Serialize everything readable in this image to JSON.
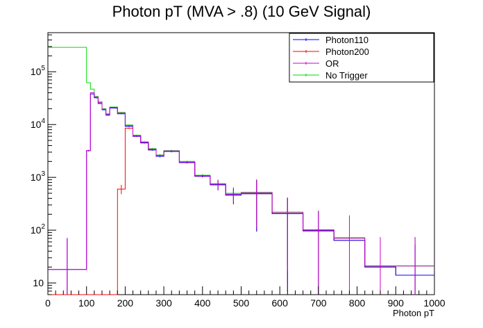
{
  "chart_data": {
    "type": "histogram",
    "title": "Photon pT (MVA > .8) (10 GeV Signal)",
    "xlabel": "Photon pT",
    "ylabel": "",
    "xlim": [
      0,
      1000
    ],
    "ylim": [
      6,
      550000
    ],
    "yscale": "log",
    "grid": false,
    "legend_position": "top-right",
    "x_ticks": [
      0,
      100,
      200,
      300,
      400,
      500,
      600,
      700,
      800,
      900,
      1000
    ],
    "x_tick_labels": [
      "0",
      "100",
      "200",
      "300",
      "400",
      "500",
      "600",
      "700",
      "800",
      "900",
      "1000"
    ],
    "y_ticks": [
      10,
      100,
      1000,
      10000,
      100000
    ],
    "y_tick_labels": [
      {
        "base": "10",
        "exp": ""
      },
      {
        "base": "10",
        "exp": "2"
      },
      {
        "base": "10",
        "exp": "3"
      },
      {
        "base": "10",
        "exp": "4"
      },
      {
        "base": "10",
        "exp": "5"
      }
    ],
    "bin_edges": [
      0,
      100,
      110,
      120,
      130,
      140,
      150,
      160,
      180,
      200,
      220,
      240,
      260,
      280,
      300,
      340,
      380,
      420,
      460,
      500,
      580,
      660,
      740,
      820,
      900,
      1000
    ],
    "series": [
      {
        "name": "Photon110",
        "color": "#0000ff",
        "values": [
          18,
          3200,
          38000,
          32000,
          25000,
          19000,
          15000,
          20500,
          16000,
          9200,
          6000,
          4500,
          3300,
          2500,
          3100,
          1900,
          1050,
          720,
          460,
          490,
          205,
          97,
          64,
          20,
          14
        ],
        "errors": [
          8,
          120,
          400,
          400,
          350,
          300,
          250,
          300,
          250,
          200,
          150,
          120,
          100,
          90,
          110,
          70,
          50,
          50,
          50,
          60,
          30,
          20,
          18,
          8,
          6
        ]
      },
      {
        "name": "Photon200",
        "color": "#ff0000",
        "values": [
          6,
          6,
          6,
          6,
          6,
          6,
          6,
          6,
          600,
          8500,
          6000,
          4500,
          3300,
          2500,
          3100,
          1900,
          1050,
          720,
          460,
          490,
          205,
          97,
          64,
          20,
          14
        ],
        "errors": [
          0,
          0,
          0,
          0,
          0,
          0,
          0,
          0,
          40,
          200,
          150,
          120,
          100,
          90,
          110,
          70,
          50,
          50,
          50,
          60,
          30,
          20,
          18,
          8,
          6
        ]
      },
      {
        "name": "OR",
        "color": "#cc00cc",
        "values": [
          18,
          3200,
          40000,
          33000,
          26000,
          19500,
          15500,
          21000,
          16500,
          9600,
          6100,
          4600,
          3400,
          2600,
          3150,
          1950,
          1070,
          740,
          480,
          510,
          215,
          100,
          70,
          21,
          21
        ],
        "errors": [
          8,
          120,
          400,
          400,
          350,
          300,
          250,
          300,
          250,
          200,
          150,
          120,
          100,
          90,
          110,
          70,
          50,
          50,
          50,
          60,
          30,
          20,
          18,
          8,
          8
        ]
      },
      {
        "name": "No Trigger",
        "color": "#00dd00",
        "values": [
          290000,
          62000,
          47000,
          34000,
          27000,
          20000,
          16000,
          21500,
          17000,
          9800,
          6300,
          4700,
          3500,
          2650,
          3200,
          2000,
          1100,
          760,
          500,
          520,
          220,
          102,
          72,
          21,
          21
        ],
        "errors": [
          1000,
          500,
          400,
          400,
          350,
          300,
          250,
          300,
          250,
          200,
          150,
          120,
          100,
          90,
          110,
          70,
          50,
          50,
          50,
          60,
          30,
          20,
          18,
          8,
          8
        ]
      }
    ]
  }
}
